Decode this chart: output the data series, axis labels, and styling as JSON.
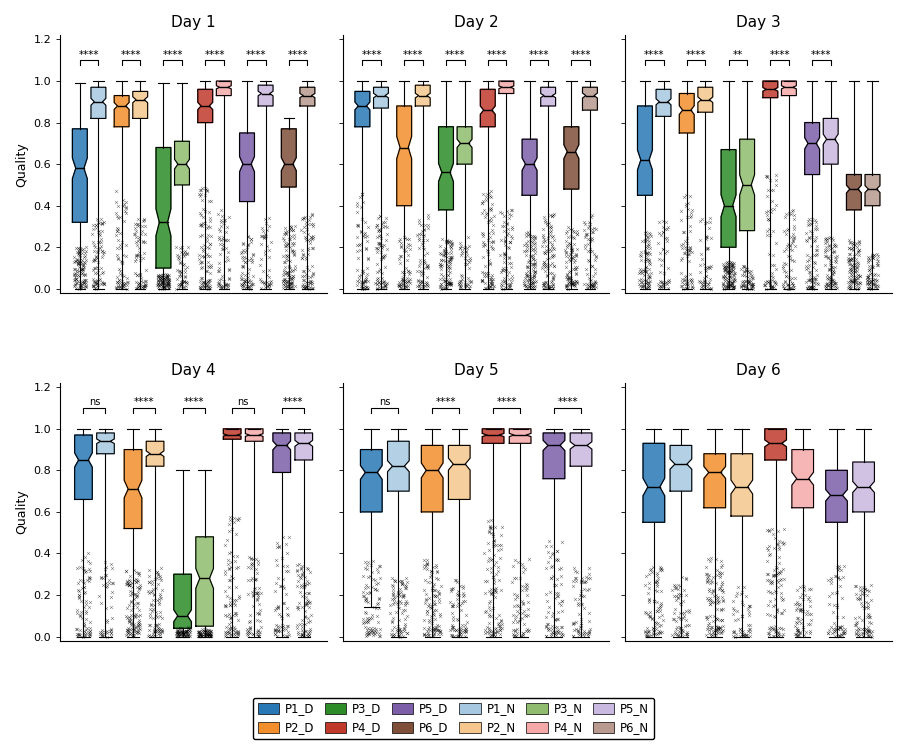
{
  "colors_D": [
    "#2878b5",
    "#f28e2b",
    "#2d8c27",
    "#c0392b",
    "#7b5ea7",
    "#7f4f39"
  ],
  "colors_N": [
    "#a6c8e0",
    "#f5c78e",
    "#8fbc6e",
    "#f4a9a8",
    "#c9b8e0",
    "#b89a8e"
  ],
  "day_configs": {
    "Day 1": {
      "patients": [
        "P1",
        "P2",
        "P3",
        "P4",
        "P5",
        "P6"
      ],
      "sig": [
        "****",
        "****",
        "****",
        "****",
        "****",
        "****"
      ],
      "P1_D": {
        "whislo": 0.0,
        "q1": 0.32,
        "med": 0.58,
        "q3": 0.77,
        "whishi": 0.99
      },
      "P1_N": {
        "whislo": 0.0,
        "q1": 0.82,
        "med": 0.9,
        "q3": 0.97,
        "whishi": 1.0
      },
      "P2_D": {
        "whislo": 0.0,
        "q1": 0.78,
        "med": 0.88,
        "q3": 0.93,
        "whishi": 1.0
      },
      "P2_N": {
        "whislo": 0.0,
        "q1": 0.82,
        "med": 0.91,
        "q3": 0.95,
        "whishi": 1.0
      },
      "P3_D": {
        "whislo": 0.0,
        "q1": 0.1,
        "med": 0.32,
        "q3": 0.68,
        "whishi": 0.99
      },
      "P3_N": {
        "whislo": 0.0,
        "q1": 0.5,
        "med": 0.6,
        "q3": 0.71,
        "whishi": 0.99
      },
      "P4_D": {
        "whislo": 0.0,
        "q1": 0.8,
        "med": 0.88,
        "q3": 0.96,
        "whishi": 1.0
      },
      "P4_N": {
        "whislo": 0.0,
        "q1": 0.93,
        "med": 0.97,
        "q3": 1.0,
        "whishi": 1.0
      },
      "P5_D": {
        "whislo": 0.0,
        "q1": 0.42,
        "med": 0.6,
        "q3": 0.75,
        "whishi": 1.0
      },
      "P5_N": {
        "whislo": 0.0,
        "q1": 0.88,
        "med": 0.94,
        "q3": 0.98,
        "whishi": 1.0
      },
      "P6_D": {
        "whislo": 0.0,
        "q1": 0.49,
        "med": 0.6,
        "q3": 0.77,
        "whishi": 0.82
      },
      "P6_N": {
        "whislo": 0.0,
        "q1": 0.88,
        "med": 0.93,
        "q3": 0.97,
        "whishi": 1.0
      }
    },
    "Day 2": {
      "patients": [
        "P1",
        "P2",
        "P3",
        "P4",
        "P5",
        "P6"
      ],
      "sig": [
        "****",
        "****",
        "****",
        "****",
        "****",
        "****"
      ],
      "P1_D": {
        "whislo": 0.0,
        "q1": 0.78,
        "med": 0.88,
        "q3": 0.95,
        "whishi": 1.0
      },
      "P1_N": {
        "whislo": 0.0,
        "q1": 0.87,
        "med": 0.93,
        "q3": 0.97,
        "whishi": 1.0
      },
      "P2_D": {
        "whislo": 0.0,
        "q1": 0.4,
        "med": 0.68,
        "q3": 0.88,
        "whishi": 1.0
      },
      "P2_N": {
        "whislo": 0.0,
        "q1": 0.88,
        "med": 0.93,
        "q3": 0.98,
        "whishi": 1.0
      },
      "P3_D": {
        "whislo": 0.0,
        "q1": 0.38,
        "med": 0.56,
        "q3": 0.78,
        "whishi": 1.0
      },
      "P3_N": {
        "whislo": 0.0,
        "q1": 0.6,
        "med": 0.7,
        "q3": 0.78,
        "whishi": 1.0
      },
      "P4_D": {
        "whislo": 0.0,
        "q1": 0.78,
        "med": 0.86,
        "q3": 0.96,
        "whishi": 1.0
      },
      "P4_N": {
        "whislo": 0.0,
        "q1": 0.94,
        "med": 0.97,
        "q3": 1.0,
        "whishi": 1.0
      },
      "P5_D": {
        "whislo": 0.0,
        "q1": 0.45,
        "med": 0.6,
        "q3": 0.72,
        "whishi": 1.0
      },
      "P5_N": {
        "whislo": 0.0,
        "q1": 0.88,
        "med": 0.93,
        "q3": 0.97,
        "whishi": 1.0
      },
      "P6_D": {
        "whislo": 0.0,
        "q1": 0.48,
        "med": 0.66,
        "q3": 0.78,
        "whishi": 1.0
      },
      "P6_N": {
        "whislo": 0.0,
        "q1": 0.86,
        "med": 0.93,
        "q3": 0.97,
        "whishi": 1.0
      }
    },
    "Day 3": {
      "patients": [
        "P1",
        "P2",
        "P3",
        "P4",
        "P5",
        "P6"
      ],
      "sig": [
        "****",
        "****",
        "**",
        "****",
        "****",
        ""
      ],
      "P1_D": {
        "whislo": 0.0,
        "q1": 0.45,
        "med": 0.62,
        "q3": 0.88,
        "whishi": 1.0
      },
      "P1_N": {
        "whislo": 0.0,
        "q1": 0.83,
        "med": 0.9,
        "q3": 0.96,
        "whishi": 1.0
      },
      "P2_D": {
        "whislo": 0.0,
        "q1": 0.75,
        "med": 0.86,
        "q3": 0.94,
        "whishi": 1.0
      },
      "P2_N": {
        "whislo": 0.0,
        "q1": 0.85,
        "med": 0.91,
        "q3": 0.97,
        "whishi": 1.0
      },
      "P3_D": {
        "whislo": 0.0,
        "q1": 0.2,
        "med": 0.4,
        "q3": 0.67,
        "whishi": 1.0
      },
      "P3_N": {
        "whislo": 0.0,
        "q1": 0.28,
        "med": 0.5,
        "q3": 0.72,
        "whishi": 1.0
      },
      "P4_D": {
        "whislo": 0.0,
        "q1": 0.92,
        "med": 0.96,
        "q3": 1.0,
        "whishi": 1.0
      },
      "P4_N": {
        "whislo": 0.0,
        "q1": 0.93,
        "med": 0.97,
        "q3": 1.0,
        "whishi": 1.0
      },
      "P5_D": {
        "whislo": 0.0,
        "q1": 0.55,
        "med": 0.7,
        "q3": 0.8,
        "whishi": 1.0
      },
      "P5_N": {
        "whislo": 0.0,
        "q1": 0.6,
        "med": 0.72,
        "q3": 0.82,
        "whishi": 1.0
      },
      "P6_D": {
        "whislo": 0.0,
        "q1": 0.38,
        "med": 0.48,
        "q3": 0.55,
        "whishi": 1.0
      },
      "P6_N": {
        "whislo": 0.0,
        "q1": 0.4,
        "med": 0.48,
        "q3": 0.55,
        "whishi": 1.0
      }
    },
    "Day 4": {
      "patients": [
        "P1",
        "P2",
        "P3",
        "P4",
        "P5"
      ],
      "sig": [
        "ns",
        "****",
        "****",
        "ns",
        "****"
      ],
      "P1_D": {
        "whislo": 0.0,
        "q1": 0.66,
        "med": 0.85,
        "q3": 0.97,
        "whishi": 1.0
      },
      "P1_N": {
        "whislo": 0.0,
        "q1": 0.88,
        "med": 0.94,
        "q3": 0.98,
        "whishi": 1.0
      },
      "P2_D": {
        "whislo": 0.0,
        "q1": 0.52,
        "med": 0.71,
        "q3": 0.9,
        "whishi": 1.0
      },
      "P2_N": {
        "whislo": 0.0,
        "q1": 0.82,
        "med": 0.88,
        "q3": 0.94,
        "whishi": 1.0
      },
      "P3_D": {
        "whislo": 0.0,
        "q1": 0.04,
        "med": 0.1,
        "q3": 0.3,
        "whishi": 0.8
      },
      "P3_N": {
        "whislo": 0.0,
        "q1": 0.05,
        "med": 0.28,
        "q3": 0.48,
        "whishi": 0.8
      },
      "P4_D": {
        "whislo": 0.0,
        "q1": 0.95,
        "med": 0.97,
        "q3": 1.0,
        "whishi": 1.0
      },
      "P4_N": {
        "whislo": 0.0,
        "q1": 0.94,
        "med": 0.97,
        "q3": 1.0,
        "whishi": 1.0
      },
      "P5_D": {
        "whislo": 0.0,
        "q1": 0.79,
        "med": 0.92,
        "q3": 0.98,
        "whishi": 1.0
      },
      "P5_N": {
        "whislo": 0.0,
        "q1": 0.85,
        "med": 0.93,
        "q3": 0.98,
        "whishi": 1.0
      }
    },
    "Day 5": {
      "patients": [
        "P1",
        "P2",
        "P4",
        "P5"
      ],
      "sig": [
        "ns",
        "****",
        "****",
        "****"
      ],
      "P1_D": {
        "whislo": 0.14,
        "q1": 0.6,
        "med": 0.79,
        "q3": 0.9,
        "whishi": 1.0
      },
      "P1_N": {
        "whislo": 0.0,
        "q1": 0.7,
        "med": 0.82,
        "q3": 0.94,
        "whishi": 1.0
      },
      "P2_D": {
        "whislo": 0.0,
        "q1": 0.6,
        "med": 0.8,
        "q3": 0.92,
        "whishi": 1.0
      },
      "P2_N": {
        "whislo": 0.0,
        "q1": 0.66,
        "med": 0.83,
        "q3": 0.92,
        "whishi": 1.0
      },
      "P4_D": {
        "whislo": 0.0,
        "q1": 0.93,
        "med": 0.97,
        "q3": 1.0,
        "whishi": 1.0
      },
      "P4_N": {
        "whislo": 0.0,
        "q1": 0.93,
        "med": 0.97,
        "q3": 1.0,
        "whishi": 1.0
      },
      "P5_D": {
        "whislo": 0.0,
        "q1": 0.76,
        "med": 0.92,
        "q3": 0.98,
        "whishi": 1.0
      },
      "P5_N": {
        "whislo": 0.0,
        "q1": 0.82,
        "med": 0.92,
        "q3": 0.98,
        "whishi": 1.0
      }
    },
    "Day 6": {
      "patients": [
        "P1",
        "P2",
        "P4",
        "P5"
      ],
      "sig": [
        "",
        "",
        "",
        ""
      ],
      "P1_D": {
        "whislo": 0.0,
        "q1": 0.55,
        "med": 0.72,
        "q3": 0.93,
        "whishi": 1.0
      },
      "P1_N": {
        "whislo": 0.0,
        "q1": 0.7,
        "med": 0.83,
        "q3": 0.92,
        "whishi": 1.0
      },
      "P2_D": {
        "whislo": 0.0,
        "q1": 0.62,
        "med": 0.79,
        "q3": 0.88,
        "whishi": 1.0
      },
      "P2_N": {
        "whislo": 0.0,
        "q1": 0.58,
        "med": 0.72,
        "q3": 0.88,
        "whishi": 1.0
      },
      "P4_D": {
        "whislo": 0.0,
        "q1": 0.85,
        "med": 0.93,
        "q3": 1.0,
        "whishi": 1.0
      },
      "P4_N": {
        "whislo": 0.0,
        "q1": 0.62,
        "med": 0.76,
        "q3": 0.9,
        "whishi": 1.0
      },
      "P5_D": {
        "whislo": 0.0,
        "q1": 0.55,
        "med": 0.68,
        "q3": 0.8,
        "whishi": 1.0
      },
      "P5_N": {
        "whislo": 0.0,
        "q1": 0.6,
        "med": 0.72,
        "q3": 0.84,
        "whishi": 1.0
      }
    }
  },
  "patient_idx": {
    "P1": 0,
    "P2": 1,
    "P3": 2,
    "P4": 3,
    "P5": 4,
    "P6": 5
  },
  "day_names": [
    "Day 1",
    "Day 2",
    "Day 3",
    "Day 4",
    "Day 5",
    "Day 6"
  ]
}
